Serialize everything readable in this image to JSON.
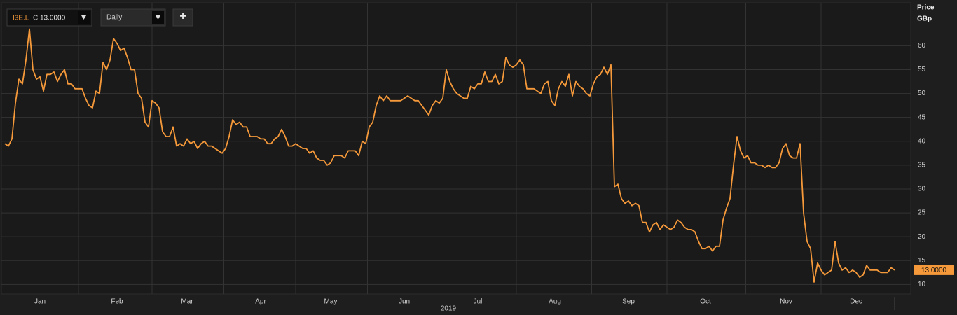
{
  "toolbar": {
    "symbol": "I3E.L",
    "close_label": "C",
    "close": "13.0000",
    "interval": "Daily",
    "add": "+"
  },
  "chart_data": {
    "type": "line",
    "y_axis_title": "Price",
    "y_axis_unit": "GBp",
    "x_axis_year": "2019",
    "last_value_label": "13.0000",
    "categories": [
      null,
      null,
      null,
      null,
      null,
      null,
      null,
      null,
      null,
      null,
      "Jan",
      null,
      null,
      null,
      null,
      null,
      null,
      null,
      null,
      null,
      null,
      null,
      null,
      null,
      null,
      null,
      null,
      null,
      null,
      null,
      null,
      null,
      "Feb",
      null,
      null,
      null,
      null,
      null,
      null,
      null,
      null,
      null,
      null,
      null,
      null,
      null,
      null,
      null,
      null,
      null,
      null,
      null,
      "Mar",
      null,
      null,
      null,
      null,
      null,
      null,
      null,
      null,
      null,
      null,
      null,
      null,
      null,
      null,
      null,
      null,
      null,
      null,
      null,
      null,
      "Apr",
      null,
      null,
      null,
      null,
      null,
      null,
      null,
      null,
      null,
      null,
      null,
      null,
      null,
      null,
      null,
      null,
      null,
      null,
      null,
      "May",
      null,
      null,
      null,
      null,
      null,
      null,
      null,
      null,
      null,
      null,
      null,
      null,
      null,
      null,
      null,
      null,
      null,
      null,
      null,
      null,
      "Jun",
      null,
      null,
      null,
      null,
      null,
      null,
      null,
      null,
      null,
      null,
      null,
      null,
      null,
      null,
      null,
      null,
      null,
      null,
      null,
      null,
      "Jul",
      null,
      null,
      null,
      null,
      null,
      null,
      null,
      null,
      null,
      null,
      null,
      null,
      null,
      null,
      null,
      null,
      null,
      null,
      null,
      null,
      null,
      "Aug",
      null,
      null,
      null,
      null,
      null,
      null,
      null,
      null,
      null,
      null,
      null,
      null,
      null,
      null,
      null,
      null,
      null,
      null,
      null,
      null,
      "Sep",
      null,
      null,
      null,
      null,
      null,
      null,
      null,
      null,
      null,
      null,
      null,
      null,
      null,
      null,
      null,
      null,
      null,
      null,
      null,
      null,
      null,
      "Oct",
      null,
      null,
      null,
      null,
      null,
      null,
      null,
      null,
      null,
      null,
      null,
      null,
      null,
      null,
      null,
      null,
      null,
      null,
      null,
      null,
      null,
      null,
      "Nov",
      null,
      null,
      null,
      null,
      null,
      null,
      null,
      null,
      null,
      null,
      null,
      null,
      null,
      null,
      null,
      null,
      null,
      null,
      null,
      "Dec",
      null,
      null,
      null,
      null,
      null,
      null,
      null,
      null,
      null,
      null,
      null
    ],
    "series": [
      {
        "name": "I3E.L",
        "color": "#f5993a",
        "values": [
          39.5,
          39,
          40.5,
          48,
          53,
          52,
          57,
          63.5,
          55,
          53,
          53.5,
          50.5,
          54,
          54,
          54.5,
          52.5,
          54,
          55,
          52,
          52,
          51,
          51,
          51,
          49,
          47.5,
          47,
          50.5,
          50,
          56.5,
          55,
          57,
          61.5,
          60.5,
          59,
          59.5,
          57.5,
          55,
          55,
          50,
          49,
          44,
          43,
          48.5,
          48,
          47,
          42,
          41,
          41,
          43,
          39,
          39.5,
          39,
          40.5,
          39.5,
          40,
          38.5,
          39.5,
          40,
          39,
          39,
          38.5,
          38,
          37.5,
          38.5,
          41,
          44.5,
          43.5,
          44,
          43,
          43,
          41,
          41,
          41,
          40.5,
          40.5,
          39.5,
          39.5,
          40.5,
          41,
          42.5,
          41,
          39,
          39,
          39.5,
          39,
          38.5,
          38.5,
          37.5,
          38,
          36.5,
          36,
          36,
          35,
          35.5,
          37,
          37,
          37,
          36.5,
          38,
          38,
          38,
          37,
          40,
          39.5,
          43,
          44,
          47.5,
          49.5,
          48.5,
          49.5,
          48.5,
          48.5,
          48.5,
          48.5,
          49,
          49.5,
          49,
          48.5,
          48.5,
          47.5,
          46.5,
          45.5,
          47.5,
          48.5,
          48,
          49,
          55,
          52.5,
          51,
          50,
          49.5,
          49,
          49,
          51.5,
          51,
          52,
          52,
          54.5,
          52.5,
          52.5,
          54,
          52,
          52.5,
          57.5,
          56,
          55.5,
          56,
          57,
          56,
          51,
          51,
          51,
          50.5,
          50,
          52,
          52.5,
          48.5,
          47.5,
          51,
          52.5,
          51.5,
          54,
          49.5,
          52.5,
          51.5,
          51,
          50,
          49.5,
          52,
          53.5,
          54,
          55.5,
          54,
          56,
          30.5,
          31,
          28,
          27,
          27.5,
          26.5,
          27,
          26.5,
          23,
          23,
          21,
          22.5,
          23,
          21.5,
          22.5,
          22,
          21.5,
          22,
          23.5,
          23,
          22,
          21.5,
          21.5,
          21,
          19,
          17.5,
          17.5,
          18,
          17,
          18,
          18,
          23.5,
          26,
          28,
          35,
          41,
          38,
          36.5,
          37,
          35.5,
          35.5,
          35,
          35,
          34.5,
          35,
          34.5,
          34.5,
          35.5,
          38.5,
          39.5,
          37,
          36.5,
          36.5,
          39.5,
          25,
          19,
          17.5,
          10.5,
          14.5,
          13,
          12,
          12.5,
          13,
          19,
          14.5,
          13,
          13.5,
          12.5,
          13,
          12.5,
          11.5,
          12,
          14,
          13,
          13,
          13,
          12.5,
          12.5,
          12.5,
          13.5,
          13
        ]
      }
    ],
    "ylim": [
      8,
      69
    ],
    "yticks": [
      10,
      15,
      20,
      25,
      30,
      35,
      40,
      45,
      50,
      55,
      60
    ],
    "grid": true,
    "y_axis_side": "right"
  }
}
